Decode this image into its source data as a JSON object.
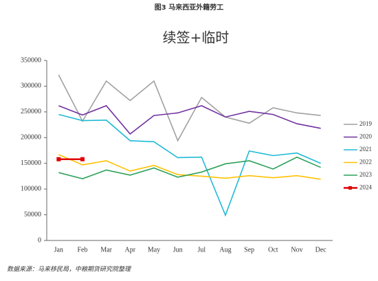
{
  "header": "图3 马来西亚外籍劳工",
  "source": "数据来源：马来移民局，中粮期货研究院整理",
  "chart_data": {
    "type": "line",
    "title": "续签+临时",
    "categories": [
      "Jan",
      "Feb",
      "Mar",
      "Apr",
      "May",
      "Jun",
      "Jul",
      "Aug",
      "Sep",
      "Oct",
      "Nov",
      "Dec"
    ],
    "ylim": [
      0,
      350000
    ],
    "yticks": [
      0,
      50000,
      100000,
      150000,
      200000,
      250000,
      300000,
      350000
    ],
    "grid": false,
    "legend": "right",
    "series": [
      {
        "name": "2019",
        "color": "#a0a0a0",
        "values": [
          322000,
          232000,
          310000,
          272000,
          310000,
          194000,
          278000,
          240000,
          228000,
          258000,
          248000,
          243000
        ]
      },
      {
        "name": "2020",
        "color": "#7030a0",
        "values": [
          262000,
          244000,
          262000,
          207000,
          243000,
          248000,
          262000,
          240000,
          251000,
          245000,
          227000,
          218000
        ]
      },
      {
        "name": "2021",
        "color": "#1fbad6",
        "values": [
          245000,
          233000,
          234000,
          194000,
          192000,
          161000,
          162000,
          49000,
          174000,
          165000,
          170000,
          150000
        ]
      },
      {
        "name": "2022",
        "color": "#ffc000",
        "values": [
          167000,
          147000,
          155000,
          135000,
          146000,
          128000,
          125000,
          121000,
          126000,
          122000,
          126000,
          119000
        ]
      },
      {
        "name": "2023",
        "color": "#2ca05a",
        "values": [
          132000,
          120000,
          137000,
          127000,
          141000,
          123000,
          133000,
          149000,
          155000,
          139000,
          162000,
          142000
        ]
      },
      {
        "name": "2024",
        "color": "#e00000",
        "markers": true,
        "values": [
          158000,
          158000,
          null,
          null,
          null,
          null,
          null,
          null,
          null,
          null,
          null,
          null
        ]
      }
    ]
  }
}
